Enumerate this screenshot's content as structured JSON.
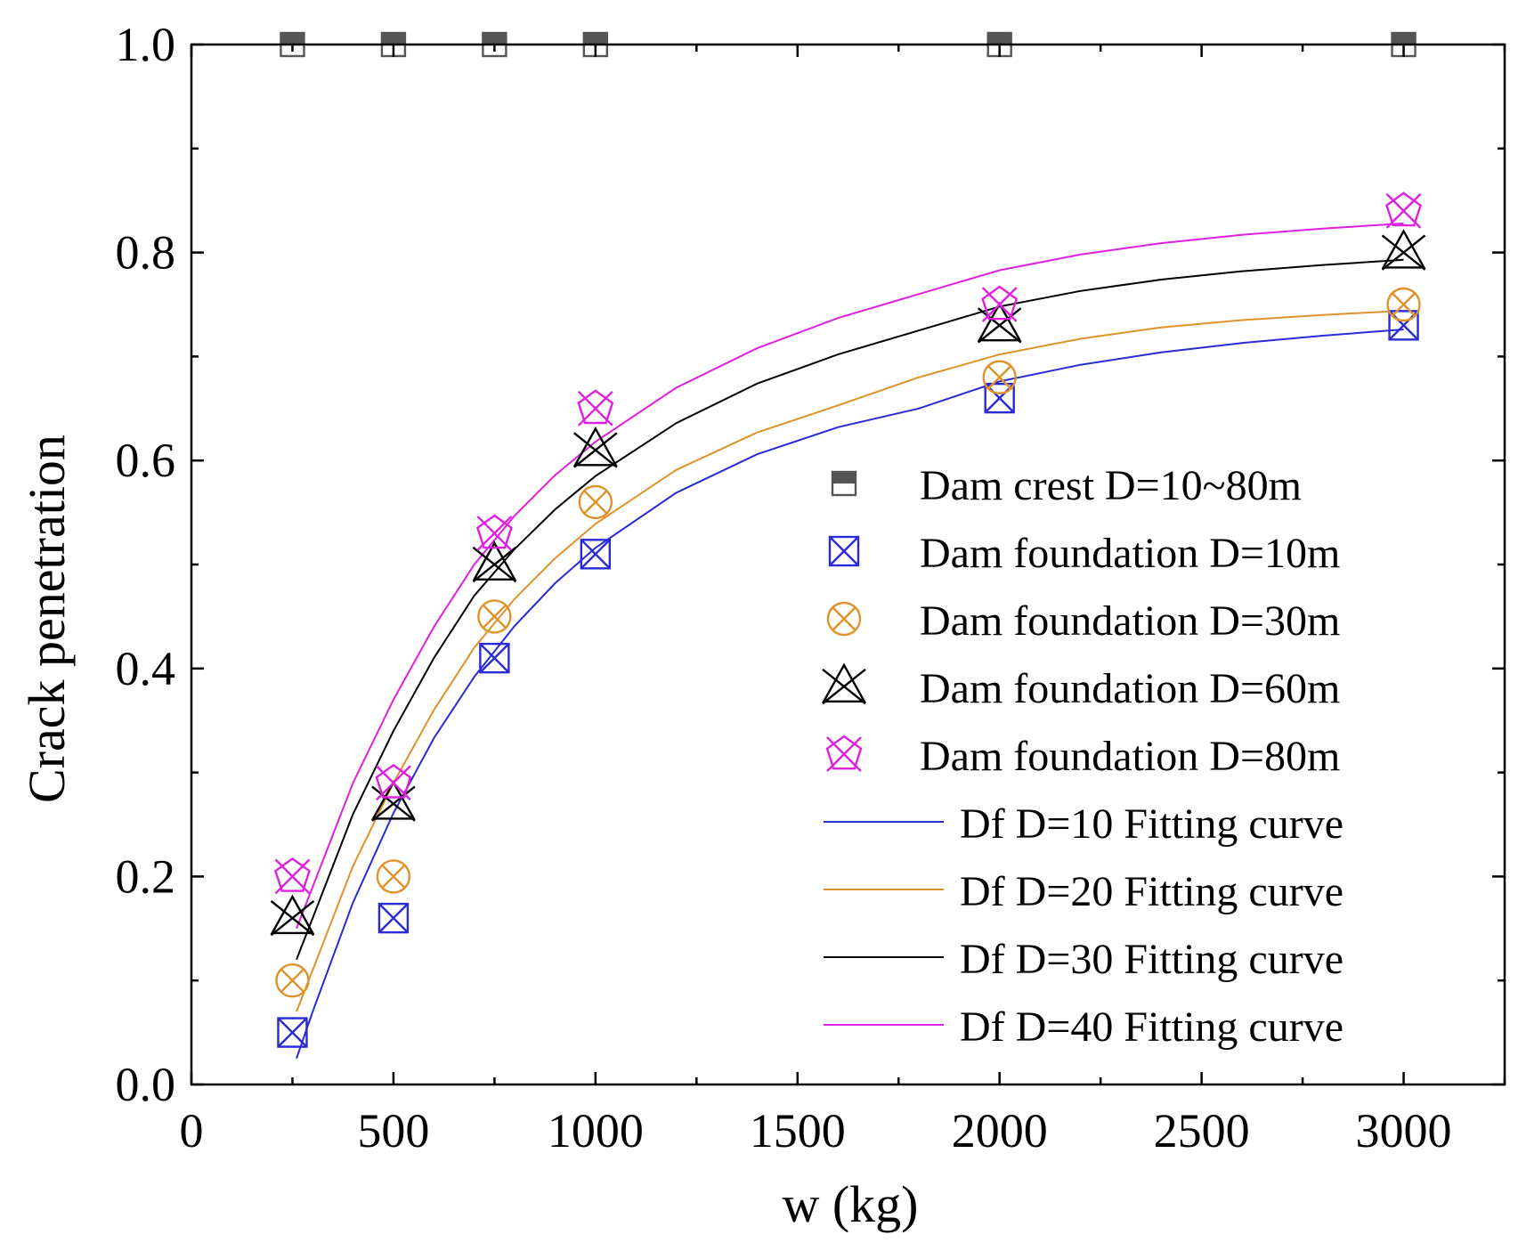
{
  "chart_data": {
    "type": "scatter",
    "xlabel": "w (kg)",
    "ylabel": "Crack penetration",
    "xlim": [
      0,
      3250
    ],
    "ylim": [
      0,
      1.0
    ],
    "xticks": [
      "0",
      "500",
      "1000",
      "1500",
      "2000",
      "2500",
      "3000"
    ],
    "xtick_values": [
      0,
      500,
      1000,
      1500,
      2000,
      2500,
      3000
    ],
    "yticks": [
      "0.0",
      "0.2",
      "0.4",
      "0.6",
      "0.8",
      "1.0"
    ],
    "ytick_values": [
      0,
      0.2,
      0.4,
      0.6,
      0.8,
      1.0
    ],
    "grid": false,
    "legend_position": "bottom-right",
    "x": [
      250,
      500,
      750,
      1000,
      2000,
      3000
    ],
    "series": [
      {
        "name": "Dam crest  D=10~80m",
        "marker": "half-square",
        "color": "#555555",
        "values": [
          1.0,
          1.0,
          1.0,
          1.0,
          1.0,
          1.0
        ]
      },
      {
        "name": "Dam foundation  D=10m",
        "marker": "square-x",
        "color": "#2a2ad6",
        "values": [
          0.05,
          0.16,
          0.41,
          0.51,
          0.66,
          0.73
        ]
      },
      {
        "name": "Dam foundation  D=30m",
        "marker": "circle-x",
        "color": "#e0922a",
        "values": [
          0.1,
          0.2,
          0.45,
          0.56,
          0.68,
          0.75
        ]
      },
      {
        "name": "Dam foundation  D=60m",
        "marker": "triangle-x",
        "color": "#000000",
        "values": [
          0.16,
          0.27,
          0.5,
          0.61,
          0.73,
          0.8
        ]
      },
      {
        "name": "Dam foundation  D=80m",
        "marker": "pentagon-x",
        "color": "#e020e0",
        "values": [
          0.2,
          0.29,
          0.53,
          0.65,
          0.75,
          0.84
        ]
      }
    ],
    "fits": [
      {
        "name": "Df D=10 Fitting curve",
        "color": "#2a2ad6",
        "x": [
          260,
          300,
          400,
          500,
          600,
          700,
          800,
          900,
          1000,
          1200,
          1400,
          1600,
          1800,
          2000,
          2200,
          2400,
          2600,
          2800,
          3000
        ],
        "values": [
          0.025,
          0.07,
          0.175,
          0.261,
          0.333,
          0.392,
          0.441,
          0.482,
          0.516,
          0.569,
          0.606,
          0.632,
          0.65,
          0.676,
          0.692,
          0.704,
          0.713,
          0.72,
          0.726
        ]
      },
      {
        "name": "Df D=20 Fitting curve",
        "color": "#e0922a",
        "x": [
          260,
          300,
          400,
          500,
          600,
          700,
          800,
          900,
          1000,
          1200,
          1400,
          1600,
          1800,
          2000,
          2200,
          2400,
          2600,
          2800,
          3000
        ],
        "values": [
          0.07,
          0.11,
          0.21,
          0.29,
          0.36,
          0.42,
          0.467,
          0.506,
          0.539,
          0.591,
          0.627,
          0.653,
          0.68,
          0.702,
          0.717,
          0.728,
          0.735,
          0.74,
          0.744
        ]
      },
      {
        "name": "Df D=30 Fitting curve",
        "color": "#000000",
        "x": [
          260,
          300,
          400,
          500,
          600,
          700,
          800,
          900,
          1000,
          1200,
          1400,
          1600,
          1800,
          2000,
          2200,
          2400,
          2600,
          2800,
          3000
        ],
        "values": [
          0.12,
          0.16,
          0.26,
          0.34,
          0.41,
          0.47,
          0.515,
          0.553,
          0.585,
          0.636,
          0.674,
          0.702,
          0.725,
          0.748,
          0.763,
          0.774,
          0.782,
          0.788,
          0.793
        ]
      },
      {
        "name": "Df D=40 Fitting curve",
        "color": "#e020e0",
        "x": [
          260,
          300,
          400,
          500,
          600,
          700,
          800,
          900,
          1000,
          1200,
          1400,
          1600,
          1800,
          2000,
          2200,
          2400,
          2600,
          2800,
          3000
        ],
        "values": [
          0.15,
          0.19,
          0.29,
          0.37,
          0.44,
          0.5,
          0.547,
          0.586,
          0.618,
          0.67,
          0.708,
          0.737,
          0.76,
          0.783,
          0.798,
          0.809,
          0.817,
          0.823,
          0.828
        ]
      }
    ]
  }
}
